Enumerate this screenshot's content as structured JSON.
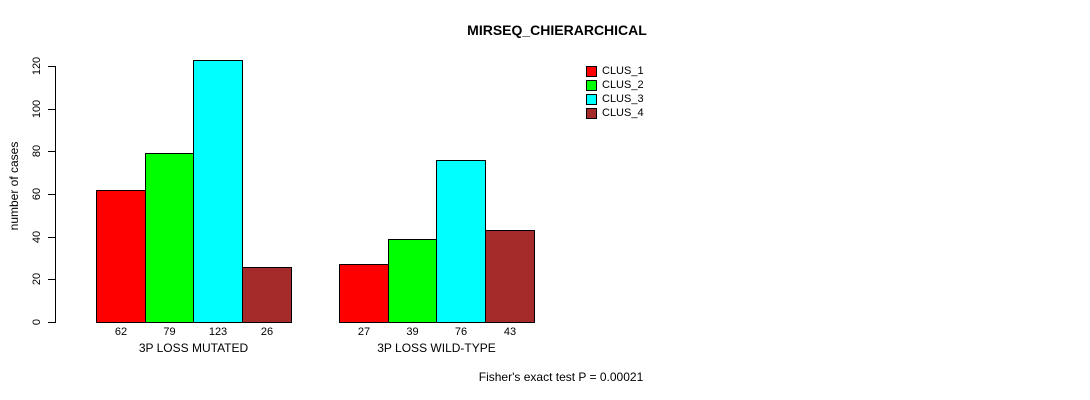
{
  "title": "MIRSEQ_CHIERARCHICAL",
  "ylabel": "number of cases",
  "footer": "Fisher's exact test P = 0.00021",
  "chart_data": {
    "type": "bar",
    "grouped": true,
    "categories": [
      "3P LOSS MUTATED",
      "3P LOSS WILD-TYPE"
    ],
    "series": [
      {
        "name": "CLUS_1",
        "color": "#ff0000",
        "values": [
          62,
          27
        ]
      },
      {
        "name": "CLUS_2",
        "color": "#00ff00",
        "values": [
          79,
          39
        ]
      },
      {
        "name": "CLUS_3",
        "color": "#00ffff",
        "values": [
          123,
          76
        ]
      },
      {
        "name": "CLUS_4",
        "color": "#a52a2a",
        "values": [
          26,
          43
        ]
      }
    ],
    "bar_value_labels": [
      [
        62,
        79,
        123,
        26
      ],
      [
        27,
        39,
        76,
        43
      ]
    ],
    "title": "MIRSEQ_CHIERARCHICAL",
    "xlabel": "",
    "ylabel": "number of cases",
    "yticks": [
      0,
      20,
      40,
      60,
      80,
      100,
      120
    ],
    "ylim": [
      0,
      120
    ],
    "grid": false,
    "legend_position": "top-right",
    "annotation": "Fisher's exact test P = 0.00021",
    "axis_color": "#000000",
    "background_color": "#ffffff"
  }
}
